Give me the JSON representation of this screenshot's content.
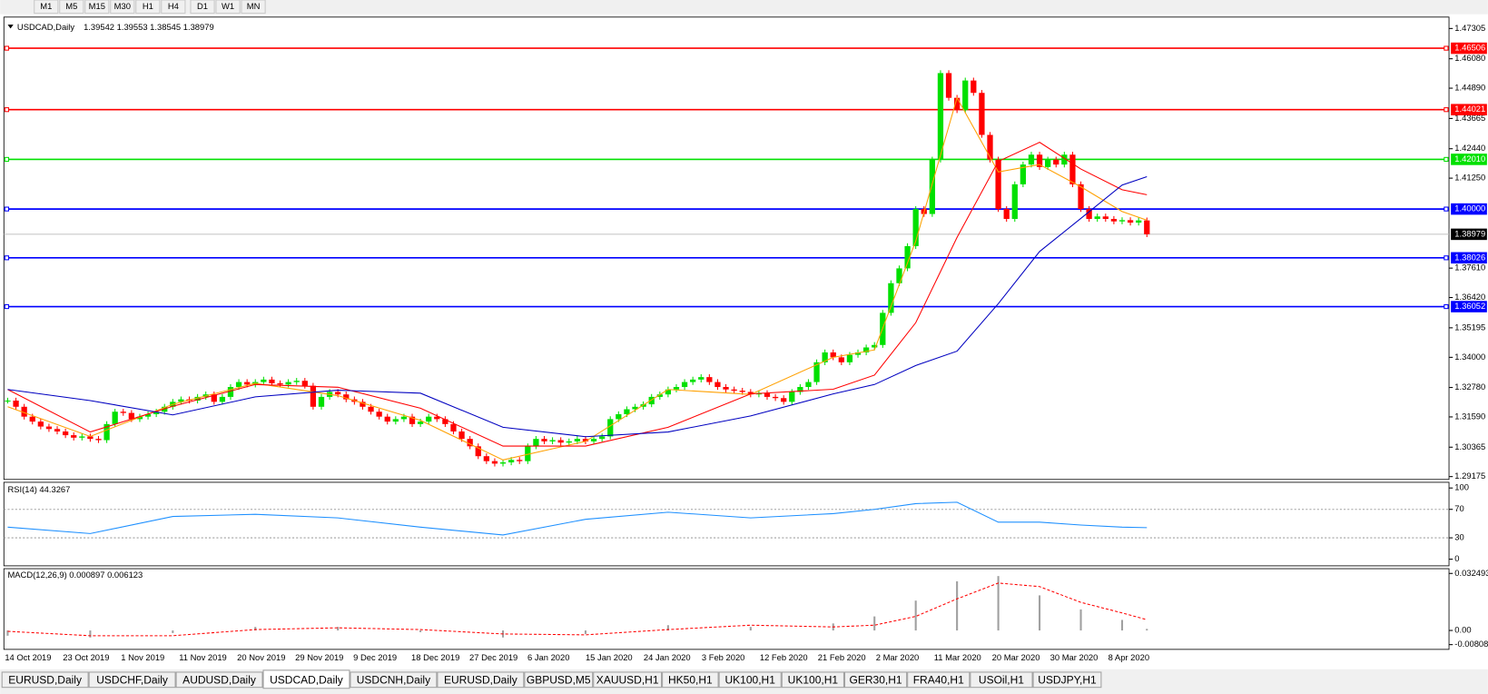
{
  "toolbar": {
    "timeframes": [
      "M1",
      "M5",
      "M15",
      "M30",
      "H1",
      "H4",
      "D1",
      "W1",
      "MN"
    ]
  },
  "chart_data": {
    "type": "candlestick",
    "title": "USDCAD,Daily",
    "ohlc_header": "1.39542 1.39553 1.38545 1.38979",
    "closes": [
      1.3225,
      1.32,
      1.316,
      1.314,
      1.312,
      1.311,
      1.31,
      1.3085,
      1.3075,
      1.308,
      1.307,
      1.3065,
      1.313,
      1.318,
      1.3175,
      1.315,
      1.316,
      1.317,
      1.318,
      1.32,
      1.322,
      1.323,
      1.3225,
      1.324,
      1.325,
      1.322,
      1.324,
      1.328,
      1.33,
      1.329,
      1.33,
      1.331,
      1.3295,
      1.329,
      1.33,
      1.3305,
      1.3285,
      1.32,
      1.324,
      1.326,
      1.325,
      1.323,
      1.322,
      1.32,
      1.318,
      1.316,
      1.314,
      1.315,
      1.316,
      1.313,
      1.314,
      1.316,
      1.315,
      1.313,
      1.31,
      1.307,
      1.304,
      1.3,
      1.298,
      1.297,
      1.2975,
      1.2985,
      1.298,
      1.304,
      1.307,
      1.306,
      1.3065,
      1.3055,
      1.306,
      1.307,
      1.306,
      1.307,
      1.308,
      1.315,
      1.317,
      1.319,
      1.32,
      1.321,
      1.324,
      1.325,
      1.327,
      1.328,
      1.33,
      1.331,
      1.332,
      1.33,
      1.328,
      1.327,
      1.3265,
      1.326,
      1.325,
      1.3255,
      1.324,
      1.3235,
      1.322,
      1.326,
      1.328,
      1.33,
      1.338,
      1.342,
      1.34,
      1.338,
      1.341,
      1.342,
      1.344,
      1.345,
      1.358,
      1.37,
      1.376,
      1.385,
      1.4,
      1.398,
      1.42,
      1.455,
      1.445,
      1.44,
      1.452,
      1.447,
      1.43,
      1.42,
      1.4,
      1.396,
      1.41,
      1.418,
      1.422,
      1.417,
      1.42,
      1.418,
      1.422,
      1.41,
      1.4,
      1.396,
      1.397,
      1.396,
      1.395,
      1.3955,
      1.3945,
      1.3954,
      1.3898
    ],
    "up_color": "#00e000",
    "down_color": "#ff0000",
    "ylim": [
      1.29175,
      1.47305
    ],
    "yticks": [
      1.47305,
      {
        "value": 1.4608,
        "label": "1.46080"
      },
      {
        "value": 1.4489,
        "label": "1.44890"
      },
      1.43665,
      {
        "value": 1.4244,
        "label": "1.42440"
      },
      {
        "value": 1.4125,
        "label": "1.41250"
      },
      {
        "value": 1.3761,
        "label": "1.37610"
      },
      {
        "value": 1.3642,
        "label": "1.36420"
      },
      1.35195,
      {
        "value": 1.34,
        "label": "1.34000"
      },
      {
        "value": 1.3278,
        "label": "1.32780"
      },
      {
        "value": 1.3159,
        "label": "1.31590"
      },
      1.30365,
      1.29175
    ],
    "levels": [
      {
        "value": 1.46506,
        "color": "#ff0000"
      },
      {
        "value": 1.44021,
        "color": "#ff0000"
      },
      {
        "value": 1.4201,
        "label": "1.42010",
        "color": "#00e000"
      },
      {
        "value": 1.4,
        "label": "1.40000",
        "color": "#0000ff"
      },
      {
        "value": 1.38026,
        "color": "#0000ff"
      },
      {
        "value": 1.36052,
        "color": "#0000ff"
      }
    ],
    "current_price": 1.38979,
    "ma_x": [
      0,
      10,
      20,
      30,
      40,
      50,
      60,
      70,
      80,
      90,
      100,
      105,
      110,
      115,
      120,
      125,
      130,
      135,
      138
    ],
    "ma_series": [
      {
        "color": "#ffa000",
        "values": [
          1.32,
          1.308,
          1.321,
          1.3295,
          1.3245,
          1.3145,
          1.2985,
          1.306,
          1.327,
          1.325,
          1.34,
          1.343,
          1.387,
          1.445,
          1.415,
          1.418,
          1.409,
          1.399,
          1.3955
        ]
      },
      {
        "color": "#ff0000",
        "values": [
          1.327,
          1.3098,
          1.3202,
          1.329,
          1.3279,
          1.3194,
          1.3041,
          1.3041,
          1.3117,
          1.3252,
          1.3271,
          1.3328,
          1.354,
          1.3885,
          1.4193,
          1.427,
          1.4162,
          1.4078,
          1.4058
        ]
      },
      {
        "color": "#0000c0",
        "values": [
          1.327,
          1.3225,
          1.3167,
          1.324,
          1.3267,
          1.3255,
          1.3117,
          1.3079,
          1.3098,
          1.3163,
          1.3252,
          1.329,
          1.3367,
          1.3425,
          1.3617,
          1.3828,
          1.3962,
          1.4097,
          1.4131
        ]
      }
    ],
    "date_labels": [
      "14 Oct 2019",
      "23 Oct 2019",
      "1 Nov 2019",
      "11 Nov 2019",
      "20 Nov 2019",
      "29 Nov 2019",
      "9 Dec 2019",
      "18 Dec 2019",
      "27 Dec 2019",
      "6 Jan 2020",
      "15 Jan 2020",
      "24 Jan 2020",
      "3 Feb 2020",
      "12 Feb 2020",
      "21 Feb 2020",
      "2 Mar 2020",
      "11 Mar 2020",
      "20 Mar 2020",
      "30 Mar 2020",
      "8 Apr 2020"
    ],
    "rsi": {
      "title": "RSI(14) 44.3267",
      "color": "#1e90ff",
      "ylim": [
        0,
        100
      ],
      "yticks": [
        100,
        70,
        30,
        0
      ],
      "levels": [
        70,
        30
      ],
      "values": [
        45,
        36,
        60,
        63,
        58,
        45,
        34,
        56,
        66,
        58,
        64,
        70,
        78,
        80,
        52,
        52,
        48,
        45,
        44.3267
      ]
    },
    "macd": {
      "title": "MACD(12,26,9) 0.000897 0.006123",
      "ylim": [
        -0.00808,
        0.032493
      ],
      "yticks": [
        0.032493,
        {
          "value": 0,
          "label": "0.00"
        },
        -0.00808
      ],
      "hist_color": "#a0a0a0",
      "signal_color": "#ff0000",
      "hist": [
        -0.003,
        -0.004,
        -0.0015,
        0.002,
        0.002,
        -0.001,
        -0.004,
        -0.002,
        0.003,
        0.002,
        0.004,
        0.008,
        0.017,
        0.028,
        0.031,
        0.02,
        0.012,
        0.006,
        0.000897
      ],
      "signal": [
        -0.0005,
        -0.003,
        -0.003,
        0.0005,
        0.0015,
        0.0005,
        -0.002,
        -0.0025,
        0.0005,
        0.003,
        0.002,
        0.003,
        0.008,
        0.018,
        0.027,
        0.025,
        0.016,
        0.01,
        0.006123
      ]
    }
  },
  "tabs": {
    "items": [
      "EURUSD,Daily",
      "USDCHF,Daily",
      "AUDUSD,Daily",
      "USDCAD,Daily",
      "USDCNH,Daily",
      "EURUSD,Daily",
      "GBPUSD,M5",
      "XAUUSD,H1",
      "HK50,H1",
      "UK100,H1",
      "UK100,H1",
      "GER30,H1",
      "FRA40,H1",
      "USOil,H1",
      "USDJPY,H1"
    ],
    "active": 3
  }
}
